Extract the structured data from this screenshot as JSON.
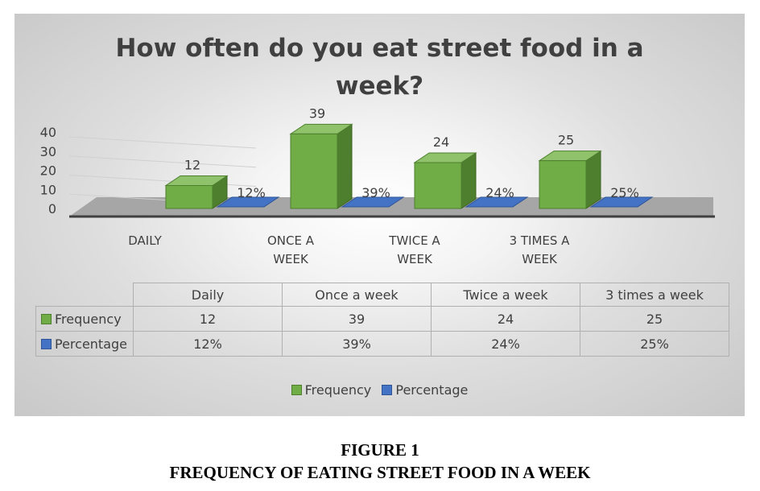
{
  "chart_data": {
    "type": "bar",
    "title_line1": "How often do you eat street food in a",
    "title_line2": "week?",
    "categories": [
      "DAILY",
      "ONCE A WEEK",
      "TWICE A WEEK",
      "3 TIMES A WEEK"
    ],
    "category_labels": [
      [
        "DAILY"
      ],
      [
        "ONCE A",
        "WEEK"
      ],
      [
        "TWICE A",
        "WEEK"
      ],
      [
        "3 TIMES A",
        "WEEK"
      ]
    ],
    "series": [
      {
        "name": "Frequency",
        "values": [
          12,
          39,
          24,
          25
        ],
        "labels": [
          "12",
          "39",
          "24",
          "25"
        ],
        "color": "#70ad47"
      },
      {
        "name": "Percentage",
        "values": [
          0.12,
          0.39,
          0.24,
          0.25
        ],
        "labels": [
          "12%",
          "39%",
          "24%",
          "25%"
        ],
        "color": "#4472c4"
      }
    ],
    "y_ticks": [
      "0",
      "10",
      "20",
      "30",
      "40"
    ],
    "ylim": [
      0,
      40
    ],
    "grid": true,
    "legend_position": "bottom",
    "data_table": {
      "headers": [
        "Daily",
        "Once a week",
        "Twice a week",
        "3 times a week"
      ],
      "rows": [
        {
          "label": "Frequency",
          "cells": [
            "12",
            "39",
            "24",
            "25"
          ]
        },
        {
          "label": "Percentage",
          "cells": [
            "12%",
            "39%",
            "24%",
            "25%"
          ]
        }
      ]
    }
  },
  "caption": {
    "line1": "FIGURE 1",
    "line2": "FREQUENCY OF EATING STREET FOOD IN A WEEK"
  }
}
